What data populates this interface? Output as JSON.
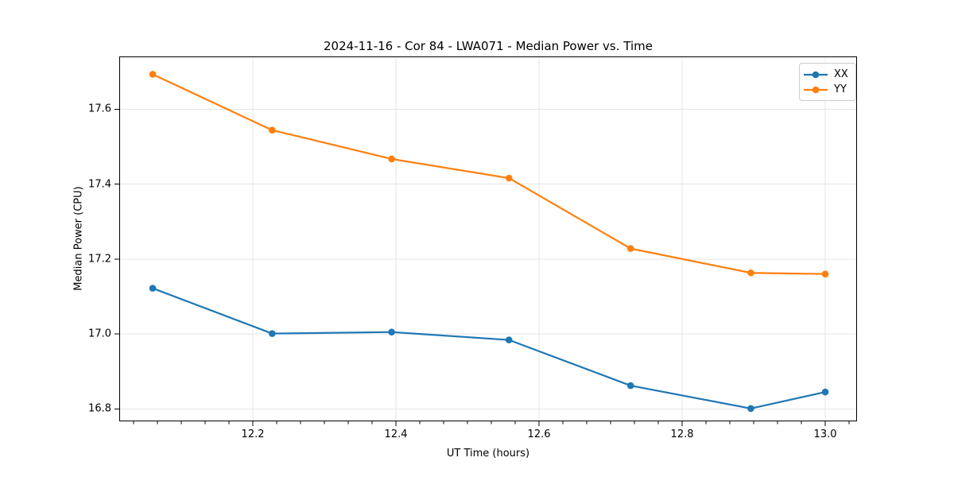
{
  "figure": {
    "title": "2024-11-16 - Cor 84 - LWA071 - Median Power vs. Time"
  },
  "chart_data": {
    "type": "line",
    "title": "2024-11-16 - Cor 84 - LWA071 - Median Power vs. Time",
    "xlabel": "UT Time (hours)",
    "ylabel": "Median Power (CPU)",
    "x": [
      12.06,
      12.227,
      12.394,
      12.558,
      12.728,
      12.896,
      13.0
    ],
    "series": [
      {
        "name": "XX",
        "color": "#1f77b4",
        "values": [
          17.122,
          17.001,
          17.005,
          16.984,
          16.862,
          16.801,
          16.845
        ]
      },
      {
        "name": "YY",
        "color": "#ff7f0e",
        "values": [
          17.693,
          17.544,
          17.467,
          17.416,
          17.228,
          17.163,
          17.16
        ]
      }
    ],
    "xlim": [
      12.0133,
      13.0444
    ],
    "ylim": [
      16.7667,
      17.7407
    ],
    "x_ticks": [
      12.2,
      12.4,
      12.6,
      12.8,
      13.0
    ],
    "x_tick_labels": [
      "12.2",
      "12.4",
      "12.6",
      "12.8",
      "13.0"
    ],
    "x_minor_tick_step": 0.0333333,
    "y_ticks": [
      16.8,
      17.0,
      17.2,
      17.4,
      17.6
    ],
    "y_tick_labels": [
      "16.8",
      "17.0",
      "17.2",
      "17.4",
      "17.6"
    ],
    "grid": true,
    "grid_color": "#e5e5e5",
    "legend_position": "upper right",
    "marker": "circle",
    "line_width": 2.2,
    "marker_radius": 4.3
  }
}
